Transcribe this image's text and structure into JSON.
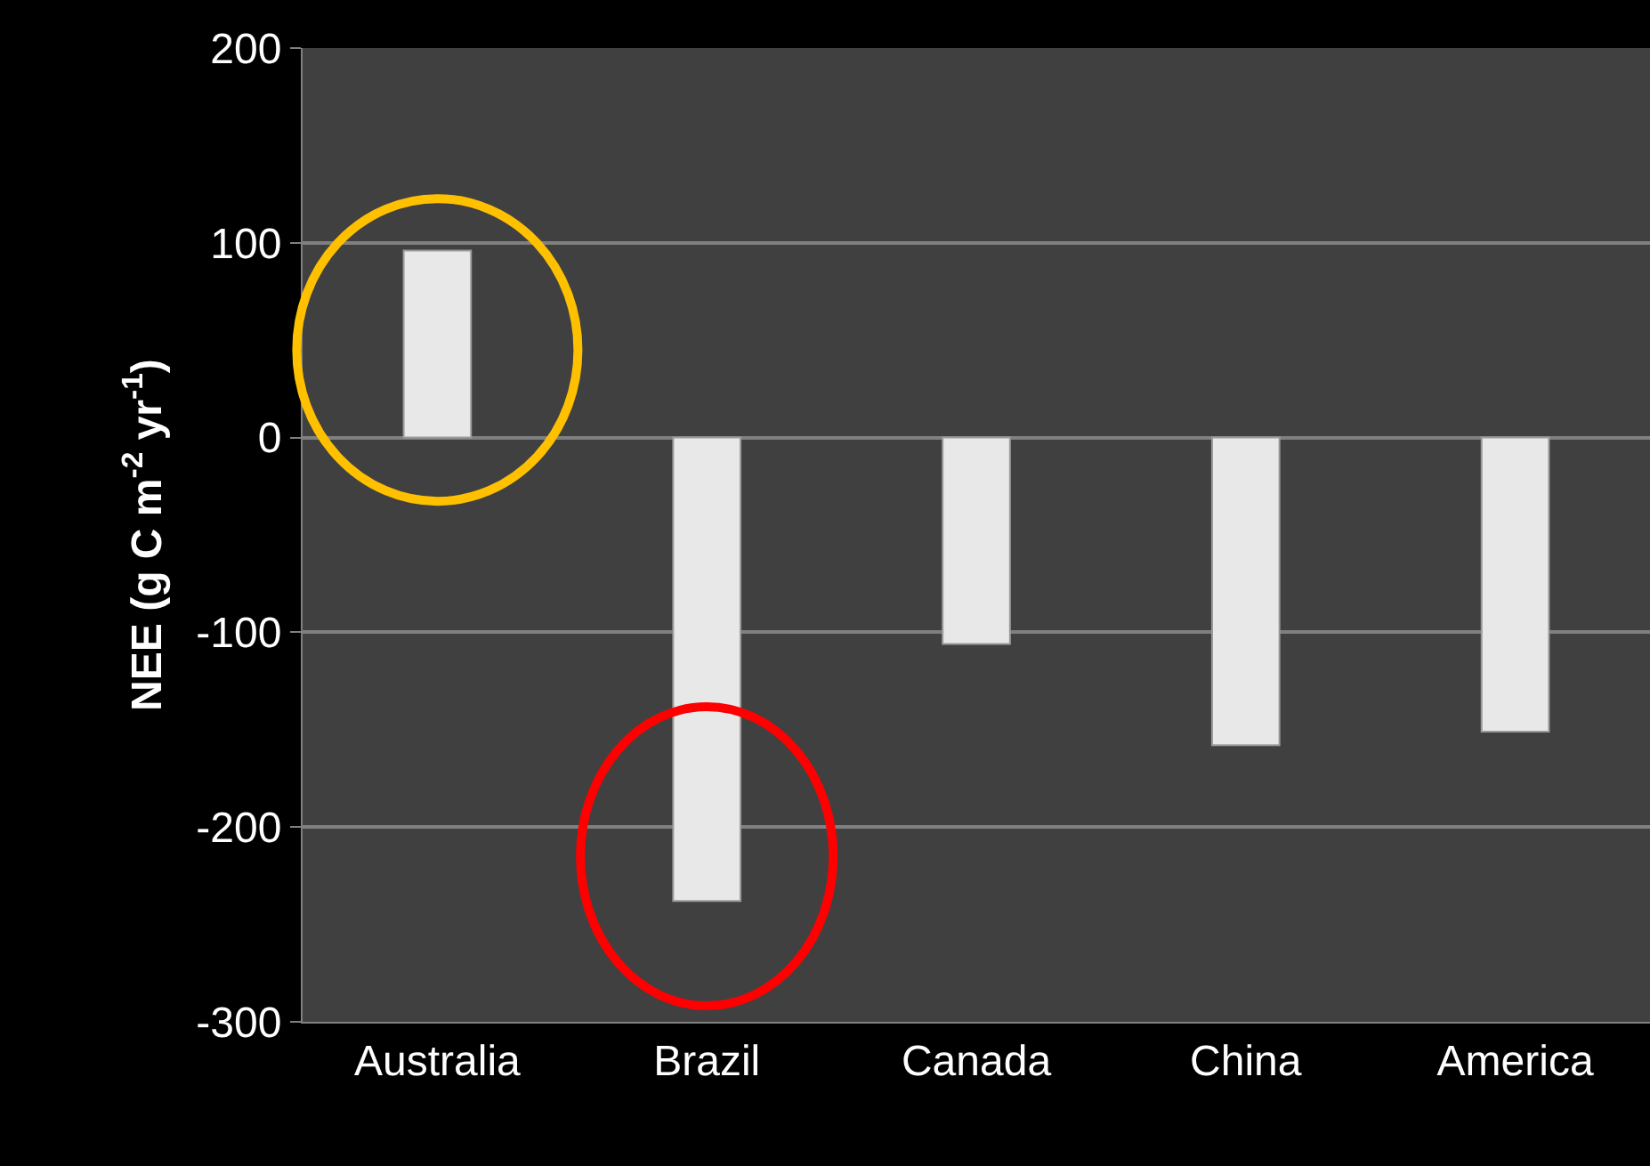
{
  "chart_data": {
    "type": "bar",
    "ylabel": "NEE (g C m$^{-2}$ yr$^{-1}$)",
    "categories": [
      "Australia",
      "Brazil",
      "Canada",
      "China",
      "America"
    ],
    "values": [
      96,
      -238,
      -106,
      -158,
      -151
    ],
    "color": "#e8e8e8",
    "ylim": [
      -300,
      200
    ],
    "yticks": [
      -300,
      -200,
      -100,
      0,
      100,
      200
    ],
    "grid": "y"
  }
}
